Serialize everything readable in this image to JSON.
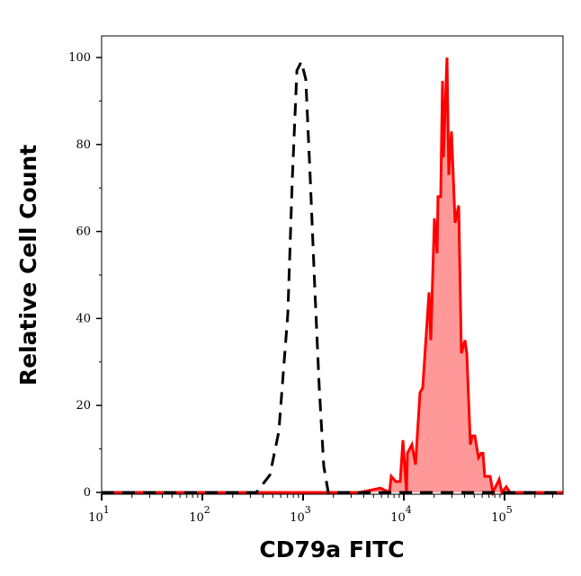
{
  "chart_data": {
    "type": "area",
    "title": "",
    "xlabel": "CD79a FITC",
    "ylabel": "Relative Cell Count",
    "x_scale": "log",
    "xlim": [
      10,
      380000
    ],
    "ylim": [
      0,
      105
    ],
    "grid": false,
    "x_ticks": [
      {
        "base": "10",
        "exp": "1",
        "value": 10
      },
      {
        "base": "10",
        "exp": "2",
        "value": 100
      },
      {
        "base": "10",
        "exp": "3",
        "value": 1000
      },
      {
        "base": "10",
        "exp": "4",
        "value": 10000
      },
      {
        "base": "10",
        "exp": "5",
        "value": 100000
      }
    ],
    "y_ticks": [
      "0",
      "20",
      "40",
      "60",
      "80",
      "100"
    ],
    "series": [
      {
        "style": "dashed-line",
        "color": "#000000",
        "x": [
          10,
          344,
          468,
          574,
          705,
          782,
          867,
          959,
          1064,
          1178,
          1306,
          1449,
          1603,
          1778,
          380000
        ],
        "y": [
          0,
          0,
          4,
          14,
          41,
          72,
          97,
          99,
          95,
          72,
          47,
          24,
          6,
          0,
          0
        ]
      },
      {
        "style": "filled-line",
        "color": "#ff0000",
        "fill": "#ff9999",
        "x": [
          10,
          3652,
          5860,
          7197,
          7499,
          8318,
          9204,
          9795,
          10641,
          10864,
          12023,
          13062,
          14480,
          15410,
          17783,
          18535,
          20137,
          21380,
          21830,
          23220,
          24210,
          24720,
          26850,
          27930,
          29720,
          32270,
          35070,
          37240,
          40460,
          42170,
          45810,
          47750,
          50700,
          55080,
          58610,
          61090,
          63680,
          71940,
          76560,
          88310,
          93970,
          104200,
          113200,
          380000
        ],
        "y": [
          0,
          0,
          1,
          0,
          3.7,
          2.5,
          2.5,
          12,
          0,
          9,
          11,
          6.4,
          23,
          24,
          46,
          35,
          63,
          55,
          68,
          68,
          94.6,
          77,
          100,
          73,
          83,
          62,
          66,
          32,
          35,
          32,
          11,
          13,
          13,
          8,
          9,
          9,
          3.7,
          3.7,
          0,
          3,
          0,
          1.3,
          0,
          0
        ]
      }
    ]
  }
}
